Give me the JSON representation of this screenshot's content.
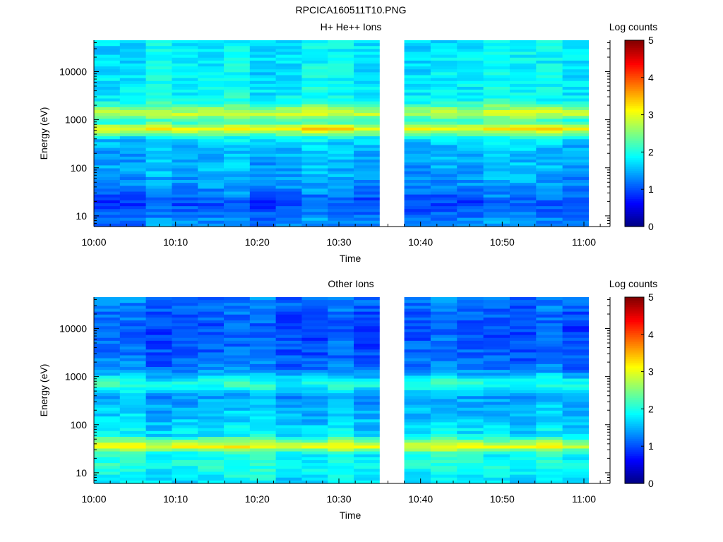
{
  "figure_title": "RPCICA160511T10.PNG",
  "chart_data": [
    {
      "type": "heatmap",
      "title": "H+ He++ Ions",
      "xlabel": "Time",
      "ylabel": "Energy (eV)",
      "y_scale": "log",
      "ylim": [
        6,
        45000
      ],
      "x_ticks": [
        "10:00",
        "10:10",
        "10:20",
        "10:30",
        "10:40",
        "10:50",
        "11:00"
      ],
      "y_ticks": [
        "10",
        "100",
        "1000",
        "10000"
      ],
      "data_gap": [
        "10:35",
        "10:38"
      ],
      "colorbar": {
        "label": "Log counts",
        "range": [
          0,
          5
        ],
        "ticks": [
          "0",
          "1",
          "2",
          "3",
          "4",
          "5"
        ]
      },
      "energy_profile_log_counts": [
        {
          "energy": 8,
          "value": 1.3
        },
        {
          "energy": 12,
          "value": 1.1
        },
        {
          "energy": 20,
          "value": 1.0
        },
        {
          "energy": 35,
          "value": 1.3
        },
        {
          "energy": 60,
          "value": 1.4
        },
        {
          "energy": 100,
          "value": 1.5
        },
        {
          "energy": 200,
          "value": 1.5
        },
        {
          "energy": 400,
          "value": 1.7
        },
        {
          "energy": 650,
          "value": 3.2
        },
        {
          "energy": 900,
          "value": 2.0
        },
        {
          "energy": 1350,
          "value": 2.9
        },
        {
          "energy": 2500,
          "value": 1.9
        },
        {
          "energy": 10000,
          "value": 1.8
        },
        {
          "energy": 40000,
          "value": 1.8
        }
      ]
    },
    {
      "type": "heatmap",
      "title": "Other Ions",
      "xlabel": "Time",
      "ylabel": "Energy (eV)",
      "y_scale": "log",
      "ylim": [
        6,
        45000
      ],
      "x_ticks": [
        "10:00",
        "10:10",
        "10:20",
        "10:30",
        "10:40",
        "10:50",
        "11:00"
      ],
      "y_ticks": [
        "10",
        "100",
        "1000",
        "10000"
      ],
      "data_gap": [
        "10:35",
        "10:38"
      ],
      "colorbar": {
        "label": "Log counts",
        "range": [
          0,
          5
        ],
        "ticks": [
          "0",
          "1",
          "2",
          "3",
          "4",
          "5"
        ]
      },
      "energy_profile_log_counts": [
        {
          "energy": 8,
          "value": 1.8
        },
        {
          "energy": 15,
          "value": 2.0
        },
        {
          "energy": 25,
          "value": 1.9
        },
        {
          "energy": 35,
          "value": 3.1
        },
        {
          "energy": 60,
          "value": 1.8
        },
        {
          "energy": 150,
          "value": 1.6
        },
        {
          "energy": 400,
          "value": 1.4
        },
        {
          "energy": 680,
          "value": 2.1
        },
        {
          "energy": 1500,
          "value": 1.2
        },
        {
          "energy": 10000,
          "value": 1.0
        },
        {
          "energy": 40000,
          "value": 1.2
        }
      ]
    }
  ]
}
